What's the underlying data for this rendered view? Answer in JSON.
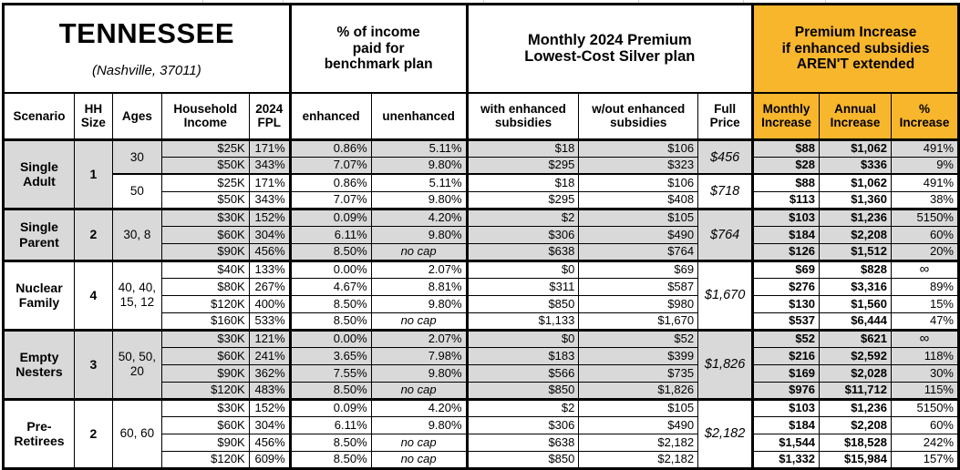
{
  "title": {
    "state": "TENNESSEE",
    "location": "(Nashville, 37011)"
  },
  "section_headers": {
    "benchmark": "% of income\npaid for\nbenchmark plan",
    "premium": "Monthly 2024 Premium\nLowest-Cost Silver plan",
    "increase": "Premium Increase\nif enhanced subsidies\nAREN'T extended"
  },
  "column_headers": {
    "scenario": "Scenario",
    "hh_size": "HH\nSize",
    "ages": "Ages",
    "household_income": "Household\nIncome",
    "fpl": "2024\nFPL",
    "enhanced": "enhanced",
    "unenhanced": "unenhanced",
    "with_subsidies": "with enhanced\nsubsidies",
    "without_subsidies": "w/out enhanced\nsubsidies",
    "full_price": "Full\nPrice",
    "monthly_increase": "Monthly\nIncrease",
    "annual_increase": "Annual\nIncrease",
    "pct_increase": "%\nIncrease"
  },
  "colors": {
    "highlight_orange": "#f8b62d",
    "row_shade_gray": "#d9d9d9",
    "border": "#000000",
    "background": "#ffffff"
  },
  "groups": [
    {
      "scenario": "Single\nAdult",
      "hh_size": "1",
      "age_groups": [
        {
          "ages": "30",
          "shaded": true,
          "full_price": "$456",
          "rows": [
            {
              "income": "$25K",
              "fpl": "171%",
              "enhanced": "0.86%",
              "unenhanced": "5.11%",
              "with_subsidies": "$18",
              "without_subsidies": "$106",
              "monthly_increase": "$88",
              "annual_increase": "$1,062",
              "pct_increase": "491%"
            },
            {
              "income": "$50K",
              "fpl": "343%",
              "enhanced": "7.07%",
              "unenhanced": "9.80%",
              "with_subsidies": "$295",
              "without_subsidies": "$323",
              "monthly_increase": "$28",
              "annual_increase": "$336",
              "pct_increase": "9%"
            }
          ]
        },
        {
          "ages": "50",
          "shaded": false,
          "full_price": "$718",
          "rows": [
            {
              "income": "$25K",
              "fpl": "171%",
              "enhanced": "0.86%",
              "unenhanced": "5.11%",
              "with_subsidies": "$18",
              "without_subsidies": "$106",
              "monthly_increase": "$88",
              "annual_increase": "$1,062",
              "pct_increase": "491%"
            },
            {
              "income": "$50K",
              "fpl": "343%",
              "enhanced": "7.07%",
              "unenhanced": "9.80%",
              "with_subsidies": "$295",
              "without_subsidies": "$408",
              "monthly_increase": "$113",
              "annual_increase": "$1,360",
              "pct_increase": "38%"
            }
          ]
        }
      ]
    },
    {
      "scenario": "Single\nParent",
      "hh_size": "2",
      "age_groups": [
        {
          "ages": "30, 8",
          "shaded": true,
          "full_price": "$764",
          "rows": [
            {
              "income": "$30K",
              "fpl": "152%",
              "enhanced": "0.09%",
              "unenhanced": "4.20%",
              "with_subsidies": "$2",
              "without_subsidies": "$105",
              "monthly_increase": "$103",
              "annual_increase": "$1,236",
              "pct_increase": "5150%"
            },
            {
              "income": "$60K",
              "fpl": "304%",
              "enhanced": "6.11%",
              "unenhanced": "9.80%",
              "with_subsidies": "$306",
              "without_subsidies": "$490",
              "monthly_increase": "$184",
              "annual_increase": "$2,208",
              "pct_increase": "60%"
            },
            {
              "income": "$90K",
              "fpl": "456%",
              "enhanced": "8.50%",
              "unenhanced": "no cap",
              "with_subsidies": "$638",
              "without_subsidies": "$764",
              "monthly_increase": "$126",
              "annual_increase": "$1,512",
              "pct_increase": "20%"
            }
          ]
        }
      ]
    },
    {
      "scenario": "Nuclear\nFamily",
      "hh_size": "4",
      "age_groups": [
        {
          "ages": "40, 40,\n15, 12",
          "shaded": false,
          "full_price": "$1,670",
          "rows": [
            {
              "income": "$40K",
              "fpl": "133%",
              "enhanced": "0.00%",
              "unenhanced": "2.07%",
              "with_subsidies": "$0",
              "without_subsidies": "$69",
              "monthly_increase": "$69",
              "annual_increase": "$828",
              "pct_increase": "∞"
            },
            {
              "income": "$80K",
              "fpl": "267%",
              "enhanced": "4.67%",
              "unenhanced": "8.81%",
              "with_subsidies": "$311",
              "without_subsidies": "$587",
              "monthly_increase": "$276",
              "annual_increase": "$3,316",
              "pct_increase": "89%"
            },
            {
              "income": "$120K",
              "fpl": "400%",
              "enhanced": "8.50%",
              "unenhanced": "9.80%",
              "with_subsidies": "$850",
              "without_subsidies": "$980",
              "monthly_increase": "$130",
              "annual_increase": "$1,560",
              "pct_increase": "15%"
            },
            {
              "income": "$160K",
              "fpl": "533%",
              "enhanced": "8.50%",
              "unenhanced": "no cap",
              "with_subsidies": "$1,133",
              "without_subsidies": "$1,670",
              "monthly_increase": "$537",
              "annual_increase": "$6,444",
              "pct_increase": "47%"
            }
          ]
        }
      ]
    },
    {
      "scenario": "Empty\nNesters",
      "hh_size": "3",
      "age_groups": [
        {
          "ages": "50, 50,\n20",
          "shaded": true,
          "full_price": "$1,826",
          "rows": [
            {
              "income": "$30K",
              "fpl": "121%",
              "enhanced": "0.00%",
              "unenhanced": "2.07%",
              "with_subsidies": "$0",
              "without_subsidies": "$52",
              "monthly_increase": "$52",
              "annual_increase": "$621",
              "pct_increase": "∞"
            },
            {
              "income": "$60K",
              "fpl": "241%",
              "enhanced": "3.65%",
              "unenhanced": "7.98%",
              "with_subsidies": "$183",
              "without_subsidies": "$399",
              "monthly_increase": "$216",
              "annual_increase": "$2,592",
              "pct_increase": "118%"
            },
            {
              "income": "$90K",
              "fpl": "362%",
              "enhanced": "7.55%",
              "unenhanced": "9.80%",
              "with_subsidies": "$566",
              "without_subsidies": "$735",
              "monthly_increase": "$169",
              "annual_increase": "$2,028",
              "pct_increase": "30%"
            },
            {
              "income": "$120K",
              "fpl": "483%",
              "enhanced": "8.50%",
              "unenhanced": "no cap",
              "with_subsidies": "$850",
              "without_subsidies": "$1,826",
              "monthly_increase": "$976",
              "annual_increase": "$11,712",
              "pct_increase": "115%"
            }
          ]
        }
      ]
    },
    {
      "scenario": "Pre-\nRetirees",
      "hh_size": "2",
      "age_groups": [
        {
          "ages": "60, 60",
          "shaded": false,
          "full_price": "$2,182",
          "rows": [
            {
              "income": "$30K",
              "fpl": "152%",
              "enhanced": "0.09%",
              "unenhanced": "4.20%",
              "with_subsidies": "$2",
              "without_subsidies": "$105",
              "monthly_increase": "$103",
              "annual_increase": "$1,236",
              "pct_increase": "5150%"
            },
            {
              "income": "$60K",
              "fpl": "304%",
              "enhanced": "6.11%",
              "unenhanced": "9.80%",
              "with_subsidies": "$306",
              "without_subsidies": "$490",
              "monthly_increase": "$184",
              "annual_increase": "$2,208",
              "pct_increase": "60%"
            },
            {
              "income": "$90K",
              "fpl": "456%",
              "enhanced": "8.50%",
              "unenhanced": "no cap",
              "with_subsidies": "$638",
              "without_subsidies": "$2,182",
              "monthly_increase": "$1,544",
              "annual_increase": "$18,528",
              "pct_increase": "242%"
            },
            {
              "income": "$120K",
              "fpl": "609%",
              "enhanced": "8.50%",
              "unenhanced": "no cap",
              "with_subsidies": "$850",
              "without_subsidies": "$2,182",
              "monthly_increase": "$1,332",
              "annual_increase": "$15,984",
              "pct_increase": "157%"
            }
          ]
        }
      ]
    }
  ],
  "chart_data": {
    "type": "table",
    "title": "TENNESSEE (Nashville, 37011)",
    "section_headers": [
      "% of income paid for benchmark plan",
      "Monthly 2024 Premium Lowest-Cost Silver plan",
      "Premium Increase if enhanced subsidies AREN'T extended"
    ],
    "columns": [
      "Scenario",
      "HH Size",
      "Ages",
      "Household Income",
      "2024 FPL",
      "enhanced",
      "unenhanced",
      "with enhanced subsidies",
      "w/out enhanced subsidies",
      "Full Price",
      "Monthly Increase",
      "Annual Increase",
      "% Increase"
    ],
    "rows": [
      [
        "Single Adult",
        "1",
        "30",
        "$25K",
        "171%",
        "0.86%",
        "5.11%",
        "$18",
        "$106",
        "$456",
        "$88",
        "$1,062",
        "491%"
      ],
      [
        "Single Adult",
        "1",
        "30",
        "$50K",
        "343%",
        "7.07%",
        "9.80%",
        "$295",
        "$323",
        "$456",
        "$28",
        "$336",
        "9%"
      ],
      [
        "Single Adult",
        "1",
        "50",
        "$25K",
        "171%",
        "0.86%",
        "5.11%",
        "$18",
        "$106",
        "$718",
        "$88",
        "$1,062",
        "491%"
      ],
      [
        "Single Adult",
        "1",
        "50",
        "$50K",
        "343%",
        "7.07%",
        "9.80%",
        "$295",
        "$408",
        "$718",
        "$113",
        "$1,360",
        "38%"
      ],
      [
        "Single Parent",
        "2",
        "30, 8",
        "$30K",
        "152%",
        "0.09%",
        "4.20%",
        "$2",
        "$105",
        "$764",
        "$103",
        "$1,236",
        "5150%"
      ],
      [
        "Single Parent",
        "2",
        "30, 8",
        "$60K",
        "304%",
        "6.11%",
        "9.80%",
        "$306",
        "$490",
        "$764",
        "$184",
        "$2,208",
        "60%"
      ],
      [
        "Single Parent",
        "2",
        "30, 8",
        "$90K",
        "456%",
        "8.50%",
        "no cap",
        "$638",
        "$764",
        "$764",
        "$126",
        "$1,512",
        "20%"
      ],
      [
        "Nuclear Family",
        "4",
        "40, 40, 15, 12",
        "$40K",
        "133%",
        "0.00%",
        "2.07%",
        "$0",
        "$69",
        "$1,670",
        "$69",
        "$828",
        "∞"
      ],
      [
        "Nuclear Family",
        "4",
        "40, 40, 15, 12",
        "$80K",
        "267%",
        "4.67%",
        "8.81%",
        "$311",
        "$587",
        "$1,670",
        "$276",
        "$3,316",
        "89%"
      ],
      [
        "Nuclear Family",
        "4",
        "40, 40, 15, 12",
        "$120K",
        "400%",
        "8.50%",
        "9.80%",
        "$850",
        "$980",
        "$1,670",
        "$130",
        "$1,560",
        "15%"
      ],
      [
        "Nuclear Family",
        "4",
        "40, 40, 15, 12",
        "$160K",
        "533%",
        "8.50%",
        "no cap",
        "$1,133",
        "$1,670",
        "$1,670",
        "$537",
        "$6,444",
        "47%"
      ],
      [
        "Empty Nesters",
        "3",
        "50, 50, 20",
        "$30K",
        "121%",
        "0.00%",
        "2.07%",
        "$0",
        "$52",
        "$1,826",
        "$52",
        "$621",
        "∞"
      ],
      [
        "Empty Nesters",
        "3",
        "50, 50, 20",
        "$60K",
        "241%",
        "3.65%",
        "7.98%",
        "$183",
        "$399",
        "$1,826",
        "$216",
        "$2,592",
        "118%"
      ],
      [
        "Empty Nesters",
        "3",
        "50, 50, 20",
        "$90K",
        "362%",
        "7.55%",
        "9.80%",
        "$566",
        "$735",
        "$1,826",
        "$169",
        "$2,028",
        "30%"
      ],
      [
        "Empty Nesters",
        "3",
        "50, 50, 20",
        "$120K",
        "483%",
        "8.50%",
        "no cap",
        "$850",
        "$1,826",
        "$1,826",
        "$976",
        "$11,712",
        "115%"
      ],
      [
        "Pre-Retirees",
        "2",
        "60, 60",
        "$30K",
        "152%",
        "0.09%",
        "4.20%",
        "$2",
        "$105",
        "$2,182",
        "$103",
        "$1,236",
        "5150%"
      ],
      [
        "Pre-Retirees",
        "2",
        "60, 60",
        "$60K",
        "304%",
        "6.11%",
        "9.80%",
        "$306",
        "$490",
        "$2,182",
        "$184",
        "$2,208",
        "60%"
      ],
      [
        "Pre-Retirees",
        "2",
        "60, 60",
        "$90K",
        "456%",
        "8.50%",
        "no cap",
        "$638",
        "$2,182",
        "$2,182",
        "$1,544",
        "$18,528",
        "242%"
      ],
      [
        "Pre-Retirees",
        "2",
        "60, 60",
        "$120K",
        "609%",
        "8.50%",
        "no cap",
        "$850",
        "$2,182",
        "$2,182",
        "$1,332",
        "$15,984",
        "157%"
      ]
    ]
  }
}
